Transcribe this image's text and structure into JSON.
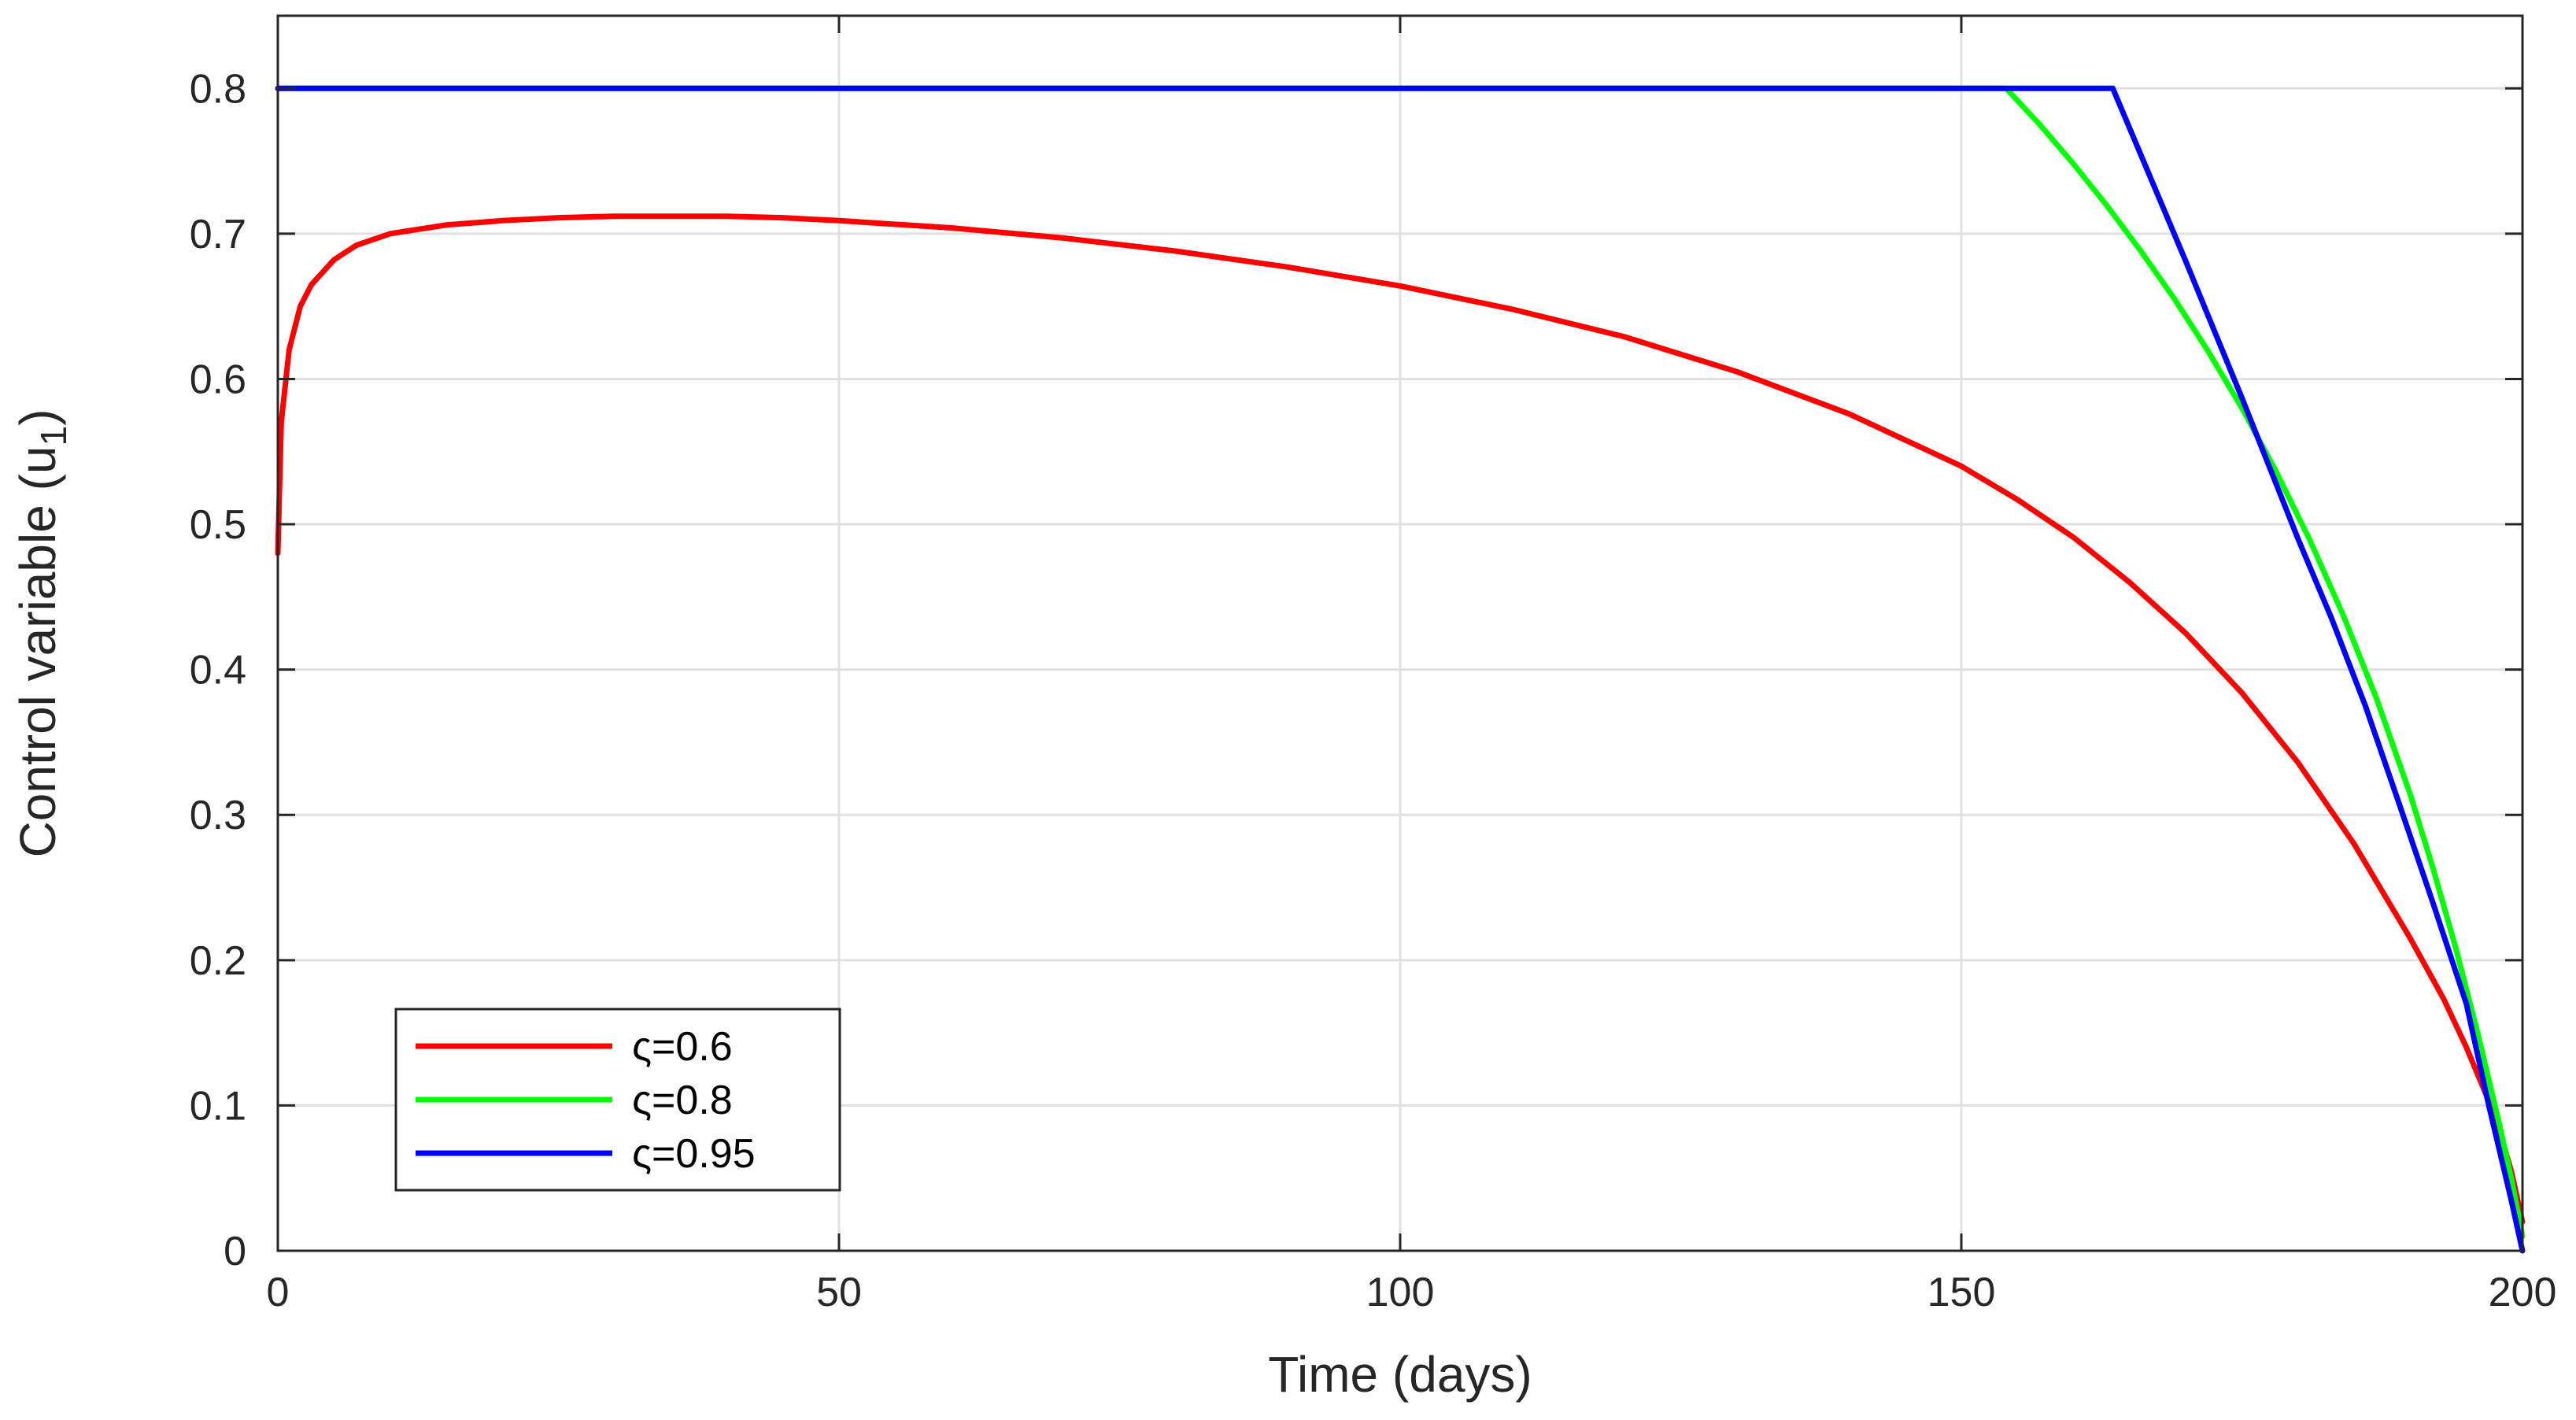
{
  "chart_data": {
    "type": "line",
    "title": "",
    "xlabel": "Time (days)",
    "ylabel": "Control variable (u",
    "ylabel_subscript": "1",
    "ylabel_close": ")",
    "xlim": [
      0,
      200
    ],
    "ylim": [
      0,
      0.85
    ],
    "xticks": [
      0,
      50,
      100,
      150,
      200
    ],
    "xtick_labels": [
      "0",
      "50",
      "100",
      "150",
      "200"
    ],
    "yticks": [
      0,
      0.1,
      0.2,
      0.3,
      0.4,
      0.5,
      0.6,
      0.7,
      0.8
    ],
    "ytick_labels": [
      "0",
      "0.1",
      "0.2",
      "0.3",
      "0.4",
      "0.5",
      "0.6",
      "0.7",
      "0.8"
    ],
    "grid": true,
    "legend_position": "bottom-left",
    "series": [
      {
        "name": "ς=0.6",
        "color": "#ff0000",
        "x": [
          0,
          0.3,
          1,
          2,
          3,
          5,
          7,
          10,
          15,
          20,
          25,
          30,
          35,
          40,
          45,
          50,
          60,
          70,
          80,
          90,
          100,
          110,
          120,
          130,
          140,
          150,
          155,
          160,
          165,
          170,
          175,
          180,
          185,
          190,
          193,
          195,
          197,
          198,
          199,
          200
        ],
        "y": [
          0.48,
          0.57,
          0.62,
          0.65,
          0.665,
          0.682,
          0.692,
          0.7,
          0.706,
          0.709,
          0.711,
          0.712,
          0.712,
          0.712,
          0.711,
          0.709,
          0.704,
          0.697,
          0.688,
          0.677,
          0.664,
          0.648,
          0.629,
          0.605,
          0.576,
          0.54,
          0.517,
          0.491,
          0.46,
          0.425,
          0.384,
          0.336,
          0.28,
          0.215,
          0.173,
          0.14,
          0.103,
          0.081,
          0.055,
          0.02
        ]
      },
      {
        "name": "ς=0.8",
        "color": "#00ff00",
        "x": [
          0,
          154,
          157,
          160,
          163,
          166,
          169,
          172,
          175,
          178,
          181,
          184,
          187,
          190,
          192,
          194,
          196,
          198,
          199,
          200
        ],
        "y": [
          0.8,
          0.8,
          0.775,
          0.748,
          0.719,
          0.688,
          0.655,
          0.619,
          0.58,
          0.537,
          0.49,
          0.438,
          0.38,
          0.314,
          0.264,
          0.21,
          0.15,
          0.085,
          0.05,
          0.01
        ]
      },
      {
        "name": "ς=0.95",
        "color": "#0000ff",
        "x": [
          0,
          163.5,
          170,
          175,
          180,
          183,
          186,
          189,
          192,
          195,
          197,
          199,
          200
        ],
        "y": [
          0.8,
          0.8,
          0.681,
          0.587,
          0.49,
          0.435,
          0.375,
          0.308,
          0.24,
          0.17,
          0.1,
          0.035,
          0.0
        ]
      }
    ]
  }
}
